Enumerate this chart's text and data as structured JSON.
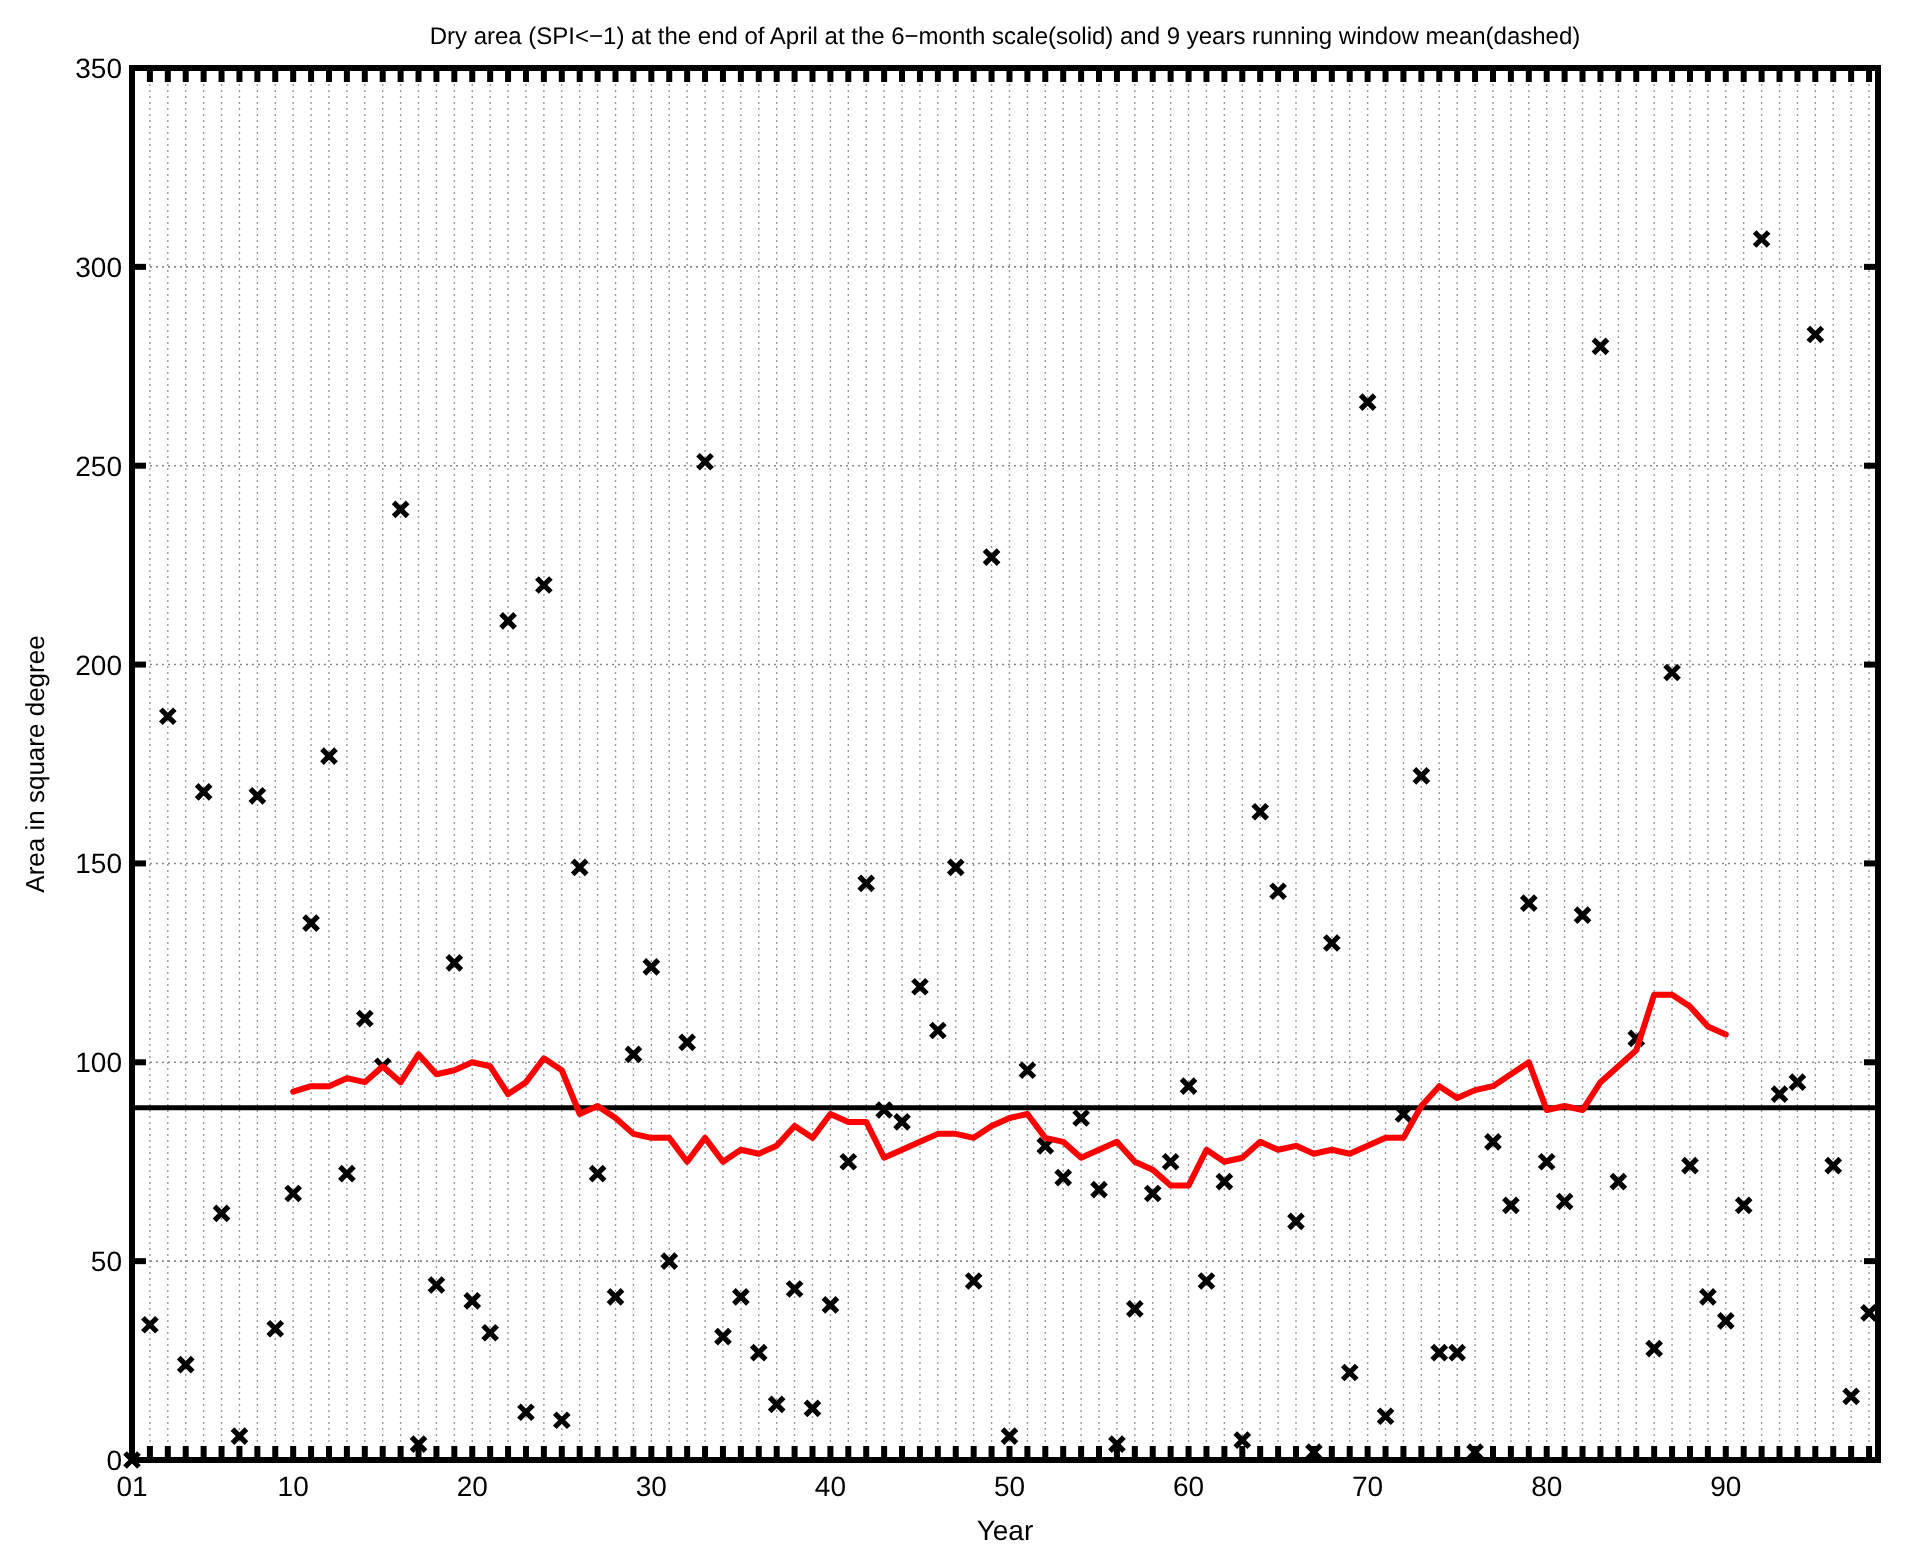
{
  "chart_data": {
    "type": "scatter",
    "title": "Dry area (SPI<−1) at the end of April at the 6−month scale(solid) and 9 years running window mean(dashed)",
    "xlabel": "Year",
    "ylabel": "Area in square degree",
    "xlim": [
      1,
      98.5
    ],
    "ylim": [
      0,
      350
    ],
    "xticks": [
      {
        "value": 1,
        "label": "01"
      },
      {
        "value": 2,
        "label": null
      },
      {
        "value": 3,
        "label": null
      },
      {
        "value": 4,
        "label": null
      },
      {
        "value": 5,
        "label": null
      },
      {
        "value": 6,
        "label": null
      },
      {
        "value": 7,
        "label": null
      },
      {
        "value": 8,
        "label": null
      },
      {
        "value": 9,
        "label": null
      },
      10,
      {
        "value": 11,
        "label": null
      },
      {
        "value": 12,
        "label": null
      },
      {
        "value": 13,
        "label": null
      },
      {
        "value": 14,
        "label": null
      },
      {
        "value": 15,
        "label": null
      },
      {
        "value": 16,
        "label": null
      },
      {
        "value": 17,
        "label": null
      },
      {
        "value": 18,
        "label": null
      },
      {
        "value": 19,
        "label": null
      },
      20,
      {
        "value": 21,
        "label": null
      },
      {
        "value": 22,
        "label": null
      },
      {
        "value": 23,
        "label": null
      },
      {
        "value": 24,
        "label": null
      },
      {
        "value": 25,
        "label": null
      },
      {
        "value": 26,
        "label": null
      },
      {
        "value": 27,
        "label": null
      },
      {
        "value": 28,
        "label": null
      },
      {
        "value": 29,
        "label": null
      },
      30,
      {
        "value": 31,
        "label": null
      },
      {
        "value": 32,
        "label": null
      },
      {
        "value": 33,
        "label": null
      },
      {
        "value": 34,
        "label": null
      },
      {
        "value": 35,
        "label": null
      },
      {
        "value": 36,
        "label": null
      },
      {
        "value": 37,
        "label": null
      },
      {
        "value": 38,
        "label": null
      },
      {
        "value": 39,
        "label": null
      },
      40,
      {
        "value": 41,
        "label": null
      },
      {
        "value": 42,
        "label": null
      },
      {
        "value": 43,
        "label": null
      },
      {
        "value": 44,
        "label": null
      },
      {
        "value": 45,
        "label": null
      },
      {
        "value": 46,
        "label": null
      },
      {
        "value": 47,
        "label": null
      },
      {
        "value": 48,
        "label": null
      },
      {
        "value": 49,
        "label": null
      },
      50,
      {
        "value": 51,
        "label": null
      },
      {
        "value": 52,
        "label": null
      },
      {
        "value": 53,
        "label": null
      },
      {
        "value": 54,
        "label": null
      },
      {
        "value": 55,
        "label": null
      },
      {
        "value": 56,
        "label": null
      },
      {
        "value": 57,
        "label": null
      },
      {
        "value": 58,
        "label": null
      },
      {
        "value": 59,
        "label": null
      },
      60,
      {
        "value": 61,
        "label": null
      },
      {
        "value": 62,
        "label": null
      },
      {
        "value": 63,
        "label": null
      },
      {
        "value": 64,
        "label": null
      },
      {
        "value": 65,
        "label": null
      },
      {
        "value": 66,
        "label": null
      },
      {
        "value": 67,
        "label": null
      },
      {
        "value": 68,
        "label": null
      },
      {
        "value": 69,
        "label": null
      },
      70,
      {
        "value": 71,
        "label": null
      },
      {
        "value": 72,
        "label": null
      },
      {
        "value": 73,
        "label": null
      },
      {
        "value": 74,
        "label": null
      },
      {
        "value": 75,
        "label": null
      },
      {
        "value": 76,
        "label": null
      },
      {
        "value": 77,
        "label": null
      },
      {
        "value": 78,
        "label": null
      },
      {
        "value": 79,
        "label": null
      },
      80,
      {
        "value": 81,
        "label": null
      },
      {
        "value": 82,
        "label": null
      },
      {
        "value": 83,
        "label": null
      },
      {
        "value": 84,
        "label": null
      },
      {
        "value": 85,
        "label": null
      },
      {
        "value": 86,
        "label": null
      },
      {
        "value": 87,
        "label": null
      },
      {
        "value": 88,
        "label": null
      },
      {
        "value": 89,
        "label": null
      },
      90,
      {
        "value": 91,
        "label": null
      },
      {
        "value": 92,
        "label": null
      },
      {
        "value": 93,
        "label": null
      },
      {
        "value": 94,
        "label": null
      },
      {
        "value": 95,
        "label": null
      },
      {
        "value": 96,
        "label": null
      },
      {
        "value": 97,
        "label": null
      },
      {
        "value": 98,
        "label": null
      }
    ],
    "yticks": [
      0,
      50,
      100,
      150,
      200,
      250,
      300,
      350
    ],
    "grid": true,
    "ref_lines": [
      {
        "axis": "y",
        "value": 88.6,
        "color": "#000000"
      }
    ],
    "series": [
      {
        "marker": "cross",
        "color": "#000000",
        "x": [
          1,
          2,
          3,
          4,
          5,
          6,
          7,
          8,
          9,
          10,
          11,
          12,
          13,
          14,
          15,
          16,
          17,
          18,
          19,
          20,
          21,
          22,
          23,
          24,
          25,
          26,
          27,
          28,
          29,
          30,
          31,
          32,
          33,
          34,
          35,
          36,
          37,
          38,
          39,
          40,
          41,
          42,
          43,
          44,
          45,
          46,
          47,
          48,
          49,
          50,
          51,
          52,
          53,
          54,
          55,
          56,
          57,
          58,
          59,
          60,
          61,
          62,
          63,
          64,
          65,
          66,
          67,
          68,
          69,
          70,
          71,
          72,
          73,
          74,
          75,
          76,
          77,
          78,
          79,
          80,
          81,
          82,
          83,
          84,
          85,
          86,
          87,
          88,
          89,
          90,
          91,
          92,
          93,
          94,
          95,
          96,
          97,
          98
        ],
        "values": [
          0,
          34,
          187,
          24,
          168,
          62,
          6,
          167,
          33,
          67,
          135,
          177,
          72,
          111,
          99,
          239,
          4,
          44,
          125,
          40,
          32,
          211,
          12,
          220,
          10,
          149,
          72,
          41,
          102,
          124,
          50,
          105,
          251,
          31,
          41,
          27,
          14,
          43,
          13,
          39,
          75,
          145,
          88,
          85,
          119,
          108,
          149,
          45,
          227,
          6,
          98,
          79,
          71,
          86,
          68,
          4,
          38,
          67,
          75,
          94,
          45,
          70,
          5,
          163,
          143,
          60,
          2,
          130,
          22,
          266,
          11,
          87,
          172,
          27,
          27,
          2,
          80,
          64,
          140,
          75,
          65,
          137,
          280,
          70,
          106,
          28,
          198,
          74,
          41,
          35,
          64,
          307,
          92,
          95,
          283,
          74,
          16,
          37
        ]
      },
      {
        "type": "line",
        "marker": "none",
        "line_style": "solid",
        "color": "#ff0000",
        "x": [
          10,
          11,
          12,
          13,
          14,
          15,
          16,
          17,
          18,
          19,
          20,
          21,
          22,
          23,
          24,
          25,
          26,
          27,
          28,
          29,
          30,
          31,
          32,
          33,
          34,
          35,
          36,
          37,
          38,
          39,
          40,
          41,
          42,
          43,
          44,
          45,
          46,
          47,
          48,
          49,
          50,
          51,
          52,
          53,
          54,
          55,
          56,
          57,
          58,
          59,
          60,
          61,
          62,
          63,
          64,
          65,
          66,
          67,
          68,
          69,
          70,
          71,
          72,
          73,
          74,
          75,
          76,
          77,
          78,
          79,
          80,
          81,
          82,
          83,
          84,
          85,
          86,
          87,
          88,
          89,
          90
        ],
        "values": [
          92.6,
          94,
          94,
          96,
          95,
          99,
          95,
          102,
          97,
          98,
          100,
          99,
          92,
          95,
          101,
          98,
          87,
          89,
          86,
          82,
          81,
          81,
          75,
          81,
          75,
          78,
          77,
          79,
          84,
          81,
          87,
          85,
          85,
          76,
          78,
          80,
          82,
          82,
          81,
          84,
          86,
          87,
          81,
          80,
          76,
          78,
          80,
          75,
          73,
          69,
          69,
          78,
          75,
          76,
          80,
          78,
          79,
          77,
          78,
          77,
          79,
          81,
          81,
          89,
          94,
          91,
          93,
          94,
          97,
          100,
          88,
          89,
          88,
          95,
          99,
          103,
          117,
          117,
          114,
          109,
          107
        ]
      }
    ]
  }
}
